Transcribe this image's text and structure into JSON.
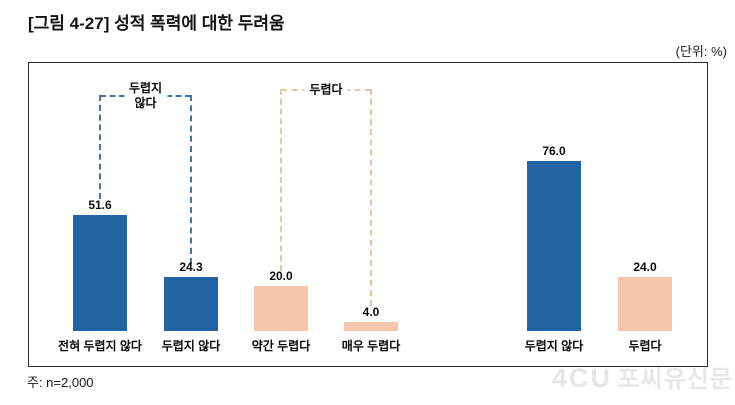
{
  "page": {
    "title": "[그림 4-27] 성적 폭력에 대한 두려움",
    "unit_label": "(단위: %)",
    "note": "주: n=2,000",
    "watermark_mark": "4CU",
    "watermark_text": "포씨유신문"
  },
  "colors": {
    "bar_blue": "#2263A3",
    "bar_peach": "#F6C6AC",
    "bracket_blue": "#4374A8",
    "bracket_peach": "#F0C2A4",
    "box_border": "#2B2B2B",
    "watermark": "#E7E7E7"
  },
  "chart_data": {
    "type": "bar",
    "title": "성적 폭력에 대한 두려움",
    "unit": "%",
    "sample": "n=2,000",
    "ylim": [
      0,
      100
    ],
    "grid": false,
    "legend": false,
    "bars": [
      {
        "category": "전혀 두렵지 않다",
        "value": 51.6,
        "display": "51.6",
        "color": "blue",
        "panel": "detail"
      },
      {
        "category": "두렵지 않다",
        "value": 24.3,
        "display": "24.3",
        "color": "blue",
        "panel": "detail"
      },
      {
        "category": "약간 두렵다",
        "value": 20.0,
        "display": "20.0",
        "color": "peach",
        "panel": "detail"
      },
      {
        "category": "매우 두렵다",
        "value": 4.0,
        "display": "4.0",
        "color": "peach",
        "panel": "detail"
      },
      {
        "category": "두렵지 않다",
        "value": 76.0,
        "display": "76.0",
        "color": "blue",
        "panel": "summary"
      },
      {
        "category": "두렵다",
        "value": 24.0,
        "display": "24.0",
        "color": "peach",
        "panel": "summary"
      }
    ],
    "annotations": [
      {
        "label": "두렵지 않다",
        "lines": [
          "두렵지",
          "않다"
        ],
        "covers": [
          "전혀 두렵지 않다",
          "두렵지 않다"
        ],
        "style": "blue-dashed"
      },
      {
        "label": "두렵다",
        "lines": [
          "두렵다"
        ],
        "covers": [
          "약간 두렵다",
          "매우 두렵다"
        ],
        "style": "peach-dashed"
      }
    ]
  }
}
